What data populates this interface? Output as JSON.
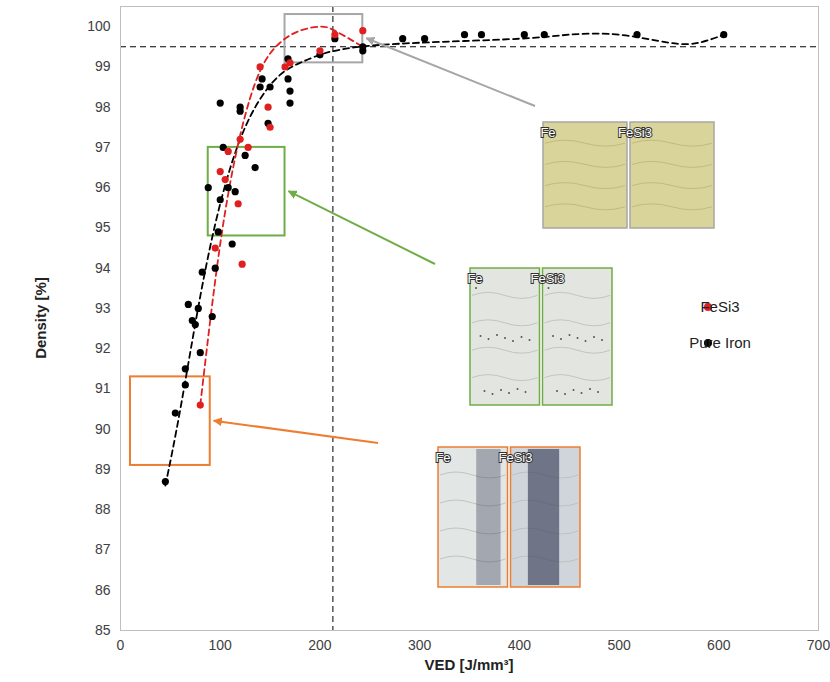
{
  "chart_data": {
    "type": "scatter",
    "x_label": "VED [J/mm³]",
    "y_label": "Density [%]",
    "xlim": [
      0,
      700
    ],
    "xticks": [
      0,
      100,
      200,
      300,
      400,
      500,
      600,
      700
    ],
    "ylim": [
      85,
      100.5
    ],
    "yticks": [
      85,
      86,
      87,
      88,
      89,
      90,
      91,
      92,
      93,
      94,
      95,
      96,
      97,
      98,
      99,
      100
    ],
    "grid": false,
    "legend": "right",
    "series": [
      {
        "name": "FeSi3",
        "color": "#e02020",
        "marker": "circle",
        "line_style": "dashed",
        "x": [
          80,
          95,
          100,
          105,
          108,
          118,
          120,
          122,
          128,
          140,
          148,
          150,
          165,
          170,
          200,
          215,
          243
        ],
        "values": [
          90.6,
          94.5,
          96.4,
          96.2,
          96.9,
          95.6,
          97.2,
          94.1,
          97.0,
          99.0,
          98.0,
          97.5,
          99.0,
          99.1,
          99.4,
          99.8,
          99.9
        ],
        "trend_x": [
          80,
          100,
          120,
          140,
          160,
          180,
          200,
          215,
          243
        ],
        "trend_y": [
          90.6,
          94.6,
          97.3,
          98.9,
          99.6,
          99.9,
          100.0,
          99.9,
          99.5
        ]
      },
      {
        "name": "Pure Iron",
        "color": "#000000",
        "marker": "circle",
        "line_style": "dashed",
        "x": [
          45,
          55,
          65,
          65,
          68,
          72,
          75,
          78,
          80,
          82,
          88,
          92,
          95,
          98,
          100,
          100,
          103,
          108,
          112,
          115,
          120,
          120,
          125,
          135,
          140,
          142,
          148,
          150,
          168,
          168,
          170,
          170,
          200,
          215,
          243,
          243,
          283,
          305,
          345,
          362,
          405,
          425,
          518,
          605
        ],
        "values": [
          88.7,
          90.4,
          91.1,
          91.5,
          93.1,
          92.7,
          92.6,
          93.0,
          91.9,
          93.9,
          96.0,
          92.8,
          94.0,
          94.9,
          98.1,
          95.7,
          97.0,
          96.0,
          94.6,
          95.9,
          98.0,
          97.9,
          96.8,
          96.5,
          98.5,
          98.7,
          97.6,
          98.5,
          99.2,
          98.7,
          98.1,
          98.4,
          99.3,
          99.7,
          99.5,
          99.4,
          99.7,
          99.7,
          99.8,
          99.8,
          99.8,
          99.8,
          99.8,
          99.8
        ],
        "trend_x": [
          45,
          60,
          80,
          100,
          120,
          140,
          160,
          180,
          200,
          215,
          240,
          300,
          400,
          450,
          500,
          550,
          580,
          605
        ],
        "trend_y": [
          88.6,
          90.5,
          93.3,
          95.6,
          97.2,
          98.2,
          98.8,
          99.1,
          99.3,
          99.4,
          99.5,
          99.6,
          99.7,
          99.8,
          99.8,
          99.6,
          99.6,
          99.8
        ]
      }
    ],
    "reference_lines": {
      "x": 213,
      "y": 99.5,
      "line_style": "dashed"
    },
    "highlights": [
      {
        "x": [
          165,
          243
        ],
        "y": [
          99.1,
          100.3
        ],
        "color": "#a6a6a6",
        "inset_labels": [
          "Fe",
          "FeSi3"
        ]
      },
      {
        "x": [
          88,
          165
        ],
        "y": [
          94.8,
          97.0
        ],
        "color": "#70ad47",
        "inset_labels": [
          "Fe",
          "FeSi3"
        ]
      },
      {
        "x": [
          10,
          90
        ],
        "y": [
          89.1,
          91.3
        ],
        "color": "#ed7d31",
        "inset_labels": [
          "Fe",
          "FeSi3"
        ]
      }
    ]
  }
}
